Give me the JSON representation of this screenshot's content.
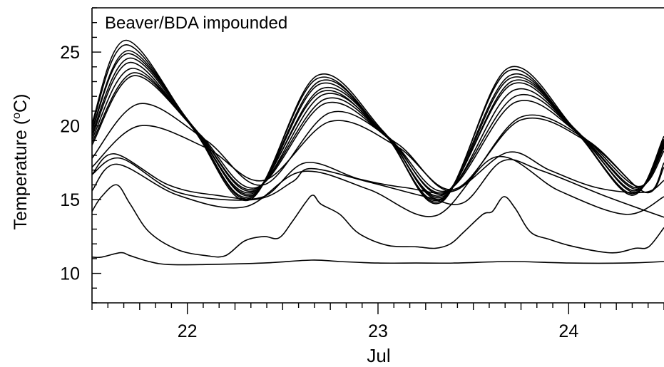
{
  "chart_data": {
    "type": "line",
    "title": "Beaver/BDA impounded",
    "xlabel": "Jul",
    "ylabel": "Temperature (°C)",
    "ylabel_parts": {
      "before": "Temperature (",
      "sup": "o",
      "after": "C)"
    },
    "xlim": [
      21.5,
      24.5
    ],
    "ylim": [
      8,
      28
    ],
    "x_ticks": [
      22,
      23,
      24
    ],
    "x_tick_labels": [
      "22",
      "23",
      "24"
    ],
    "y_ticks": [
      10,
      15,
      20,
      25
    ],
    "y_tick_labels": [
      "10",
      "15",
      "20",
      "25"
    ],
    "grid": false,
    "legend": "none",
    "line_color": "#000000",
    "series": [
      {
        "x": [
          21.5,
          21.68,
          22.03,
          22.33,
          22.68,
          23.03,
          23.33,
          23.68,
          24.03,
          24.33,
          24.5
        ],
        "y": [
          20.2,
          25.8,
          19.8,
          15.0,
          23.4,
          19.6,
          14.8,
          23.9,
          19.8,
          15.3,
          19.3
        ]
      },
      {
        "x": [
          21.5,
          21.68,
          22.03,
          22.33,
          22.68,
          23.03,
          23.33,
          23.68,
          24.03,
          24.33,
          24.5
        ],
        "y": [
          20.0,
          25.5,
          19.9,
          15.1,
          23.2,
          19.5,
          14.9,
          23.7,
          19.7,
          15.3,
          19.1
        ]
      },
      {
        "x": [
          21.5,
          21.69,
          22.03,
          22.33,
          22.69,
          23.03,
          23.33,
          23.69,
          24.03,
          24.33,
          24.5
        ],
        "y": [
          19.8,
          25.1,
          19.9,
          15.2,
          23.0,
          19.5,
          15.0,
          23.4,
          19.7,
          15.4,
          19.0
        ]
      },
      {
        "x": [
          21.5,
          21.69,
          22.04,
          22.34,
          22.69,
          23.04,
          23.34,
          23.69,
          24.04,
          24.34,
          24.5
        ],
        "y": [
          19.7,
          24.9,
          19.8,
          15.3,
          22.8,
          19.4,
          15.1,
          23.2,
          19.7,
          15.5,
          18.9
        ]
      },
      {
        "x": [
          21.5,
          21.7,
          22.04,
          22.34,
          22.7,
          23.04,
          23.34,
          23.7,
          24.04,
          24.34,
          24.5
        ],
        "y": [
          19.5,
          24.6,
          19.7,
          15.4,
          22.5,
          19.4,
          15.2,
          23.0,
          19.6,
          15.6,
          18.8
        ]
      },
      {
        "x": [
          21.5,
          21.7,
          22.04,
          22.34,
          22.7,
          23.04,
          23.34,
          23.7,
          24.04,
          24.34,
          24.5
        ],
        "y": [
          19.3,
          24.3,
          19.7,
          15.5,
          22.3,
          19.3,
          15.3,
          22.8,
          19.6,
          15.6,
          18.7
        ]
      },
      {
        "x": [
          21.5,
          21.71,
          22.05,
          22.35,
          22.71,
          23.05,
          23.35,
          23.71,
          24.05,
          24.35,
          24.5
        ],
        "y": [
          19.1,
          23.9,
          19.6,
          15.6,
          22.1,
          19.3,
          15.4,
          22.4,
          19.5,
          15.7,
          18.6
        ]
      },
      {
        "x": [
          21.5,
          21.72,
          22.05,
          22.35,
          22.72,
          23.05,
          23.35,
          23.72,
          24.05,
          24.35,
          24.5
        ],
        "y": [
          18.9,
          23.6,
          19.6,
          15.7,
          21.8,
          19.2,
          15.5,
          22.0,
          19.5,
          15.8,
          18.5
        ]
      },
      {
        "x": [
          21.5,
          21.72,
          22.06,
          22.36,
          22.72,
          23.06,
          23.36,
          23.72,
          24.06,
          24.36,
          24.5
        ],
        "y": [
          18.7,
          23.4,
          19.5,
          15.8,
          21.5,
          19.1,
          15.6,
          21.6,
          19.4,
          15.9,
          18.3
        ]
      },
      {
        "x": [
          21.5,
          21.75,
          22.1,
          22.4,
          22.75,
          23.1,
          23.4,
          23.75,
          24.1,
          24.4,
          24.5
        ],
        "y": [
          17.8,
          21.5,
          19.0,
          16.0,
          20.9,
          18.8,
          15.6,
          20.6,
          19.0,
          15.5,
          17.5
        ]
      },
      {
        "x": [
          21.5,
          21.75,
          22.1,
          22.4,
          22.75,
          23.1,
          23.4,
          23.75,
          24.1,
          24.4,
          24.5
        ],
        "y": [
          17.2,
          20.0,
          18.5,
          16.3,
          20.3,
          18.6,
          15.7,
          20.4,
          18.9,
          15.5,
          17.2
        ]
      },
      {
        "x": [
          21.5,
          21.62,
          21.9,
          22.15,
          22.4,
          22.62,
          22.9,
          23.15,
          23.4,
          23.68,
          23.9,
          24.15,
          24.4,
          24.5
        ],
        "y": [
          16.7,
          18.1,
          16.0,
          15.3,
          15.2,
          17.5,
          16.4,
          15.8,
          15.6,
          18.2,
          17.0,
          15.8,
          15.5,
          16.3
        ]
      },
      {
        "x": [
          21.5,
          21.65,
          21.95,
          22.35,
          22.55,
          22.65,
          22.95,
          23.25,
          23.45,
          23.65,
          23.85,
          24.2,
          24.5
        ],
        "y": [
          16.7,
          17.8,
          15.5,
          15.0,
          16.2,
          17.1,
          16.2,
          15.2,
          14.8,
          17.6,
          17.0,
          15.2,
          13.8
        ]
      },
      {
        "x": [
          21.5,
          21.63,
          21.95,
          22.3,
          22.6,
          22.95,
          23.3,
          23.62,
          23.95,
          24.3,
          24.5
        ],
        "y": [
          15.6,
          17.4,
          15.3,
          14.5,
          16.9,
          15.7,
          13.9,
          17.9,
          15.6,
          14.0,
          15.2
        ]
      },
      {
        "x": [
          21.5,
          21.55,
          21.63,
          21.7,
          21.8,
          21.95,
          22.1,
          22.2,
          22.3,
          22.4,
          22.48,
          22.55,
          22.62,
          22.66,
          22.7,
          22.8,
          22.9,
          23.05,
          23.2,
          23.3,
          23.38,
          23.45,
          23.55,
          23.6,
          23.66,
          23.72,
          23.8,
          23.9,
          24.0,
          24.15,
          24.25,
          24.35,
          24.42,
          24.5
        ],
        "y": [
          14.2,
          15.2,
          16.0,
          14.7,
          12.8,
          11.6,
          11.2,
          11.2,
          12.2,
          12.5,
          12.4,
          13.5,
          14.8,
          15.3,
          14.7,
          14.0,
          12.7,
          11.9,
          11.8,
          11.7,
          12.0,
          12.8,
          14.0,
          14.2,
          15.2,
          14.4,
          12.8,
          12.3,
          11.9,
          11.5,
          11.4,
          11.7,
          11.8,
          13.1
        ]
      },
      {
        "x": [
          21.5,
          21.55,
          21.65,
          21.7,
          21.8,
          21.9,
          22.1,
          22.4,
          22.65,
          22.8,
          23.0,
          23.2,
          23.4,
          23.7,
          24.0,
          24.3,
          24.5
        ],
        "y": [
          11.1,
          11.1,
          11.4,
          11.2,
          10.8,
          10.6,
          10.6,
          10.7,
          10.9,
          10.8,
          10.7,
          10.7,
          10.7,
          10.8,
          10.7,
          10.7,
          10.8
        ]
      }
    ]
  }
}
